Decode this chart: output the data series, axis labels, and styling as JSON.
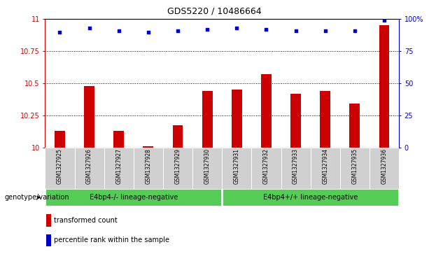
{
  "title": "GDS5220 / 10486664",
  "samples": [
    "GSM1327925",
    "GSM1327926",
    "GSM1327927",
    "GSM1327928",
    "GSM1327929",
    "GSM1327930",
    "GSM1327931",
    "GSM1327932",
    "GSM1327933",
    "GSM1327934",
    "GSM1327935",
    "GSM1327936"
  ],
  "transformed_counts": [
    10.13,
    10.48,
    10.13,
    10.01,
    10.17,
    10.44,
    10.45,
    10.57,
    10.42,
    10.44,
    10.34,
    10.95
  ],
  "percentile_ranks": [
    90,
    93,
    91,
    90,
    91,
    92,
    93,
    92,
    91,
    91,
    91,
    99
  ],
  "ylim_left": [
    10,
    11
  ],
  "ylim_right": [
    0,
    100
  ],
  "yticks_left": [
    10,
    10.25,
    10.5,
    10.75,
    11
  ],
  "yticks_right": [
    0,
    25,
    50,
    75,
    100
  ],
  "bar_color": "#cc0000",
  "dot_color": "#0000cc",
  "group1_label": "E4bp4-/- lineage-negative",
  "group2_label": "E4bp4+/+ lineage-negative",
  "group1_indices": [
    0,
    1,
    2,
    3,
    4,
    5
  ],
  "group2_indices": [
    6,
    7,
    8,
    9,
    10,
    11
  ],
  "group_color": "#55cc55",
  "annotation_label": "genotype/variation",
  "legend_bar_label": "transformed count",
  "legend_dot_label": "percentile rank within the sample",
  "tick_bg_color": "#d0d0d0",
  "title_fontsize": 9,
  "axis_fontsize": 7,
  "sample_fontsize": 5.5,
  "group_fontsize": 7,
  "legend_fontsize": 7,
  "annot_fontsize": 7
}
